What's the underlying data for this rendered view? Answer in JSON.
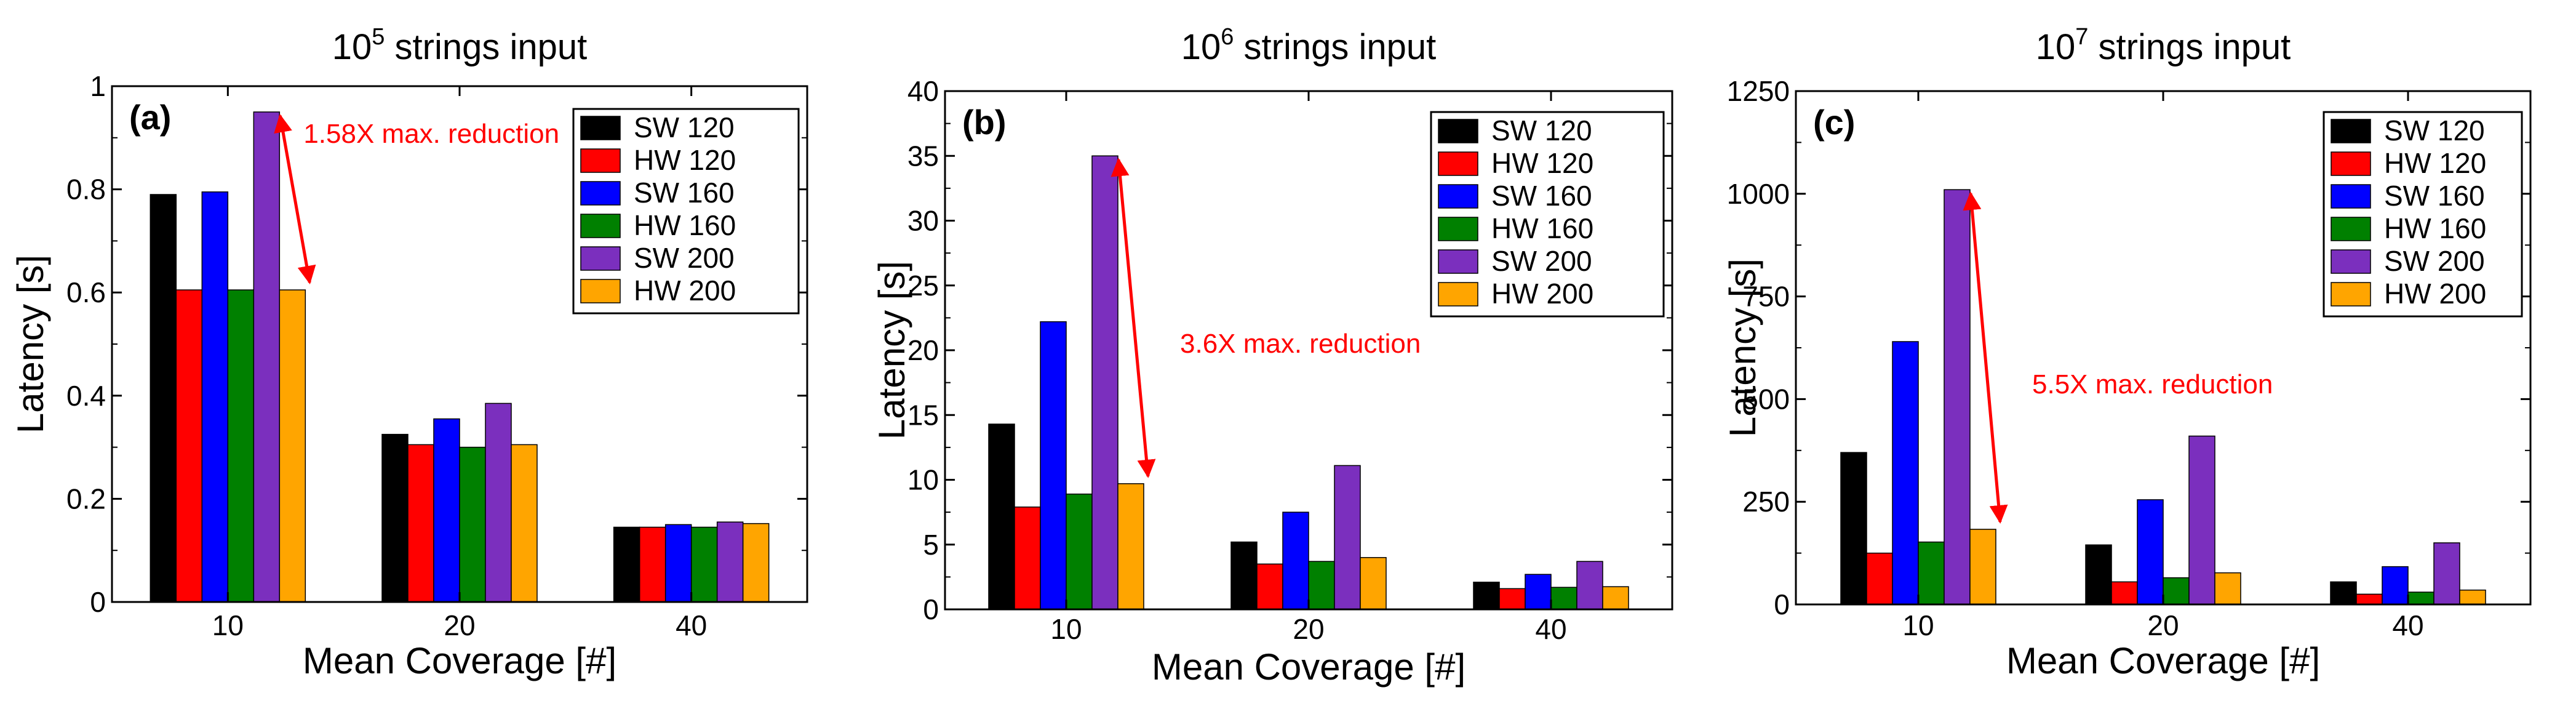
{
  "series_colors": [
    "#000000",
    "#ff0000",
    "#0000ff",
    "#008000",
    "#7b2fbe",
    "#ffa500"
  ],
  "chart_data": [
    {
      "type": "bar",
      "title": {
        "base": "10",
        "exp": "5",
        "rest": " strings input"
      },
      "panel_label": "(a)",
      "xlabel": "Mean Coverage [#]",
      "ylabel": "Latency [s]",
      "categories": [
        "10",
        "20",
        "40"
      ],
      "ylim": [
        0,
        1
      ],
      "yticks": [
        0,
        0.2,
        0.4,
        0.6,
        0.8,
        1
      ],
      "ytick_labels": [
        "0",
        "0.2",
        "0.4",
        "0.6",
        "0.8",
        "1"
      ],
      "series": [
        {
          "name": "SW 120",
          "values": [
            0.79,
            0.325,
            0.145
          ]
        },
        {
          "name": "HW 120",
          "values": [
            0.605,
            0.305,
            0.145
          ]
        },
        {
          "name": "SW 160",
          "values": [
            0.795,
            0.355,
            0.15
          ]
        },
        {
          "name": "HW 160",
          "values": [
            0.605,
            0.3,
            0.145
          ]
        },
        {
          "name": "SW 200",
          "values": [
            0.95,
            0.385,
            0.155
          ]
        },
        {
          "name": "HW 200",
          "values": [
            0.605,
            0.305,
            0.152
          ]
        }
      ],
      "annotation": {
        "text": "1.58X max. reduction",
        "from_series": 4,
        "to_series": 5,
        "category": 0
      }
    },
    {
      "type": "bar",
      "title": {
        "base": "10",
        "exp": "6",
        "rest": " strings input"
      },
      "panel_label": "(b)",
      "xlabel": "Mean Coverage [#]",
      "ylabel": "Latency [s]",
      "categories": [
        "10",
        "20",
        "40"
      ],
      "ylim": [
        0,
        40
      ],
      "yticks": [
        0,
        5,
        10,
        15,
        20,
        25,
        30,
        35,
        40
      ],
      "ytick_labels": [
        "0",
        "5",
        "10",
        "15",
        "20",
        "25",
        "30",
        "35",
        "40"
      ],
      "series": [
        {
          "name": "SW 120",
          "values": [
            14.3,
            5.2,
            2.1
          ]
        },
        {
          "name": "HW 120",
          "values": [
            7.9,
            3.5,
            1.6
          ]
        },
        {
          "name": "SW 160",
          "values": [
            22.2,
            7.5,
            2.7
          ]
        },
        {
          "name": "HW 160",
          "values": [
            8.9,
            3.7,
            1.7
          ]
        },
        {
          "name": "SW 200",
          "values": [
            35.0,
            11.1,
            3.7
          ]
        },
        {
          "name": "HW 200",
          "values": [
            9.7,
            4.0,
            1.75
          ]
        }
      ],
      "annotation": {
        "text": "3.6X max. reduction",
        "from_series": 4,
        "to_series": 5,
        "category": 0
      }
    },
    {
      "type": "bar",
      "title": {
        "base": "10",
        "exp": "7",
        "rest": " strings input"
      },
      "panel_label": "(c)",
      "xlabel": "Mean Coverage [#]",
      "ylabel": "Latency [s]",
      "categories": [
        "10",
        "20",
        "40"
      ],
      "ylim": [
        0,
        1250
      ],
      "yticks": [
        0,
        250,
        500,
        750,
        1000,
        1250
      ],
      "ytick_labels": [
        "0",
        "250",
        "500",
        "750",
        "1000",
        "1250"
      ],
      "series": [
        {
          "name": "SW 120",
          "values": [
            370,
            145,
            55
          ]
        },
        {
          "name": "HW 120",
          "values": [
            125,
            55,
            25
          ]
        },
        {
          "name": "SW 160",
          "values": [
            640,
            255,
            92
          ]
        },
        {
          "name": "HW 160",
          "values": [
            152,
            65,
            30
          ]
        },
        {
          "name": "SW 200",
          "values": [
            1010,
            410,
            150
          ]
        },
        {
          "name": "HW 200",
          "values": [
            183,
            77,
            35
          ]
        }
      ],
      "annotation": {
        "text": "5.5X max. reduction",
        "from_series": 4,
        "to_series": 5,
        "category": 0
      }
    }
  ]
}
